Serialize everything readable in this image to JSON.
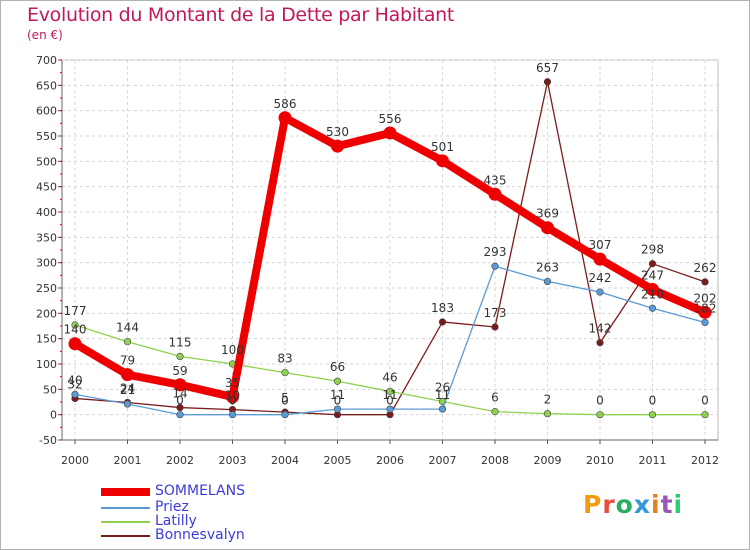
{
  "header": {
    "title": "Evolution du Montant de la Dette par Habitant",
    "subtitle": "(en €)"
  },
  "logo": {
    "text": "Proxiti",
    "colors": [
      "#f39c12",
      "#e74c3c",
      "#27ae60",
      "#3498db",
      "#e67e22",
      "#9b59b6",
      "#2ecc71"
    ]
  },
  "chart_data": {
    "type": "line",
    "x": [
      "2000",
      "2001",
      "2002",
      "2003",
      "2004",
      "2005",
      "2006",
      "2007",
      "2008",
      "2009",
      "2010",
      "2011",
      "2012"
    ],
    "ylim": [
      -50,
      700
    ],
    "yticks": [
      -50,
      0,
      50,
      100,
      150,
      200,
      250,
      300,
      350,
      400,
      450,
      500,
      550,
      600,
      650,
      700
    ],
    "grid": true,
    "legend_position": "bottom-left",
    "series": [
      {
        "name": "Bonnesvalyn",
        "color": "#7b1c1c",
        "values": [
          32,
          24,
          14,
          10,
          5,
          0,
          0,
          183,
          173,
          657,
          142,
          298,
          262
        ]
      },
      {
        "name": "Latilly",
        "color": "#8fd14f",
        "values": [
          177,
          144,
          115,
          100,
          83,
          66,
          46,
          26,
          6,
          2,
          0,
          0,
          0
        ]
      },
      {
        "name": "Priez",
        "color": "#5b9bd5",
        "values": [
          40,
          21,
          0,
          0,
          0,
          11,
          11,
          11,
          293,
          263,
          242,
          210,
          182
        ]
      },
      {
        "name": "SOMMELANS",
        "color": "#ee0000",
        "values": [
          140,
          79,
          59,
          35,
          586,
          530,
          556,
          501,
          435,
          369,
          307,
          247,
          202
        ]
      }
    ],
    "data_labels": {
      "Bonnesvalyn": [
        "32",
        "24",
        "14",
        "10",
        "5",
        "0",
        "0",
        "183",
        "173",
        "657",
        "142",
        "298",
        "262"
      ],
      "Latilly": [
        "177",
        "144",
        "115",
        "100",
        "83",
        "66",
        "46",
        "26",
        "6",
        "2",
        "0",
        "0",
        "0"
      ],
      "Priez": [
        "40",
        "21",
        "0",
        "0",
        "0",
        "11",
        "11",
        "11",
        "293",
        "263",
        "242",
        "210",
        "182"
      ],
      "SOMMELANS": [
        "140",
        "79",
        "59",
        "35",
        "586",
        "530",
        "556",
        "501",
        "435",
        "369",
        "307",
        "247",
        "202"
      ]
    },
    "legend": [
      "SOMMELANS",
      "Priez",
      "Latilly",
      "Bonnesvalyn"
    ]
  }
}
